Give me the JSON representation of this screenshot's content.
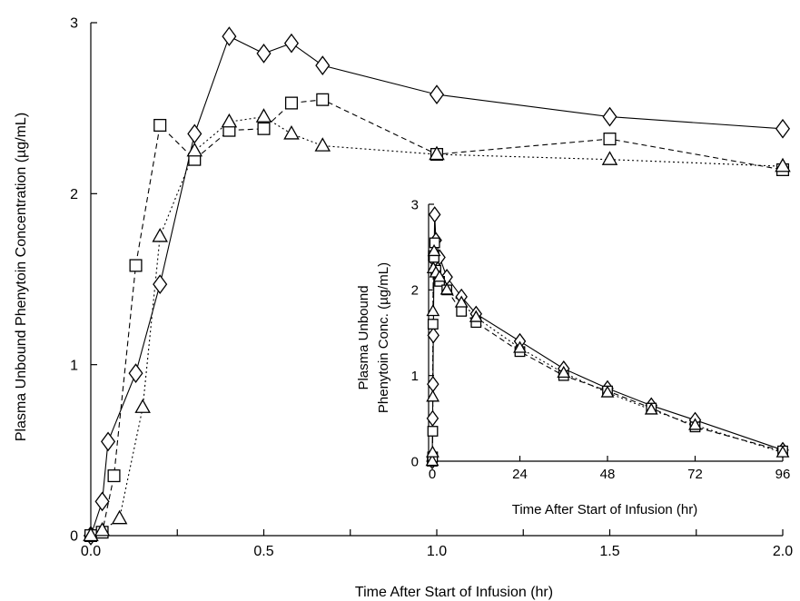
{
  "chart_data": [
    {
      "type": "line",
      "xlabel": "Time After Start of Infusion (hr)",
      "ylabel": "Plasma Unbound Phenytoin Concentration (µg/mL)",
      "xlim": [
        0,
        2.0
      ],
      "ylim": [
        0,
        3
      ],
      "xticks": [
        0.0,
        0.5,
        1.0,
        1.5,
        2.0
      ],
      "xtick_labels": [
        "0.0",
        "0.5",
        "1.0",
        "1.5",
        "2.0"
      ],
      "yticks": [
        0,
        1,
        2,
        3
      ],
      "ytick_labels": [
        "0",
        "1",
        "2",
        "3"
      ],
      "grid": false,
      "series": [
        {
          "marker": "diamond",
          "line": "solid",
          "x": [
            0.0,
            0.033,
            0.05,
            0.13,
            0.2,
            0.3,
            0.4,
            0.5,
            0.58,
            0.67,
            1.0,
            1.5,
            2.0
          ],
          "y": [
            0.0,
            0.2,
            0.55,
            0.95,
            1.47,
            2.35,
            2.92,
            2.82,
            2.88,
            2.75,
            2.58,
            2.45,
            2.38
          ]
        },
        {
          "marker": "square",
          "line": "dashed",
          "x": [
            0.0,
            0.033,
            0.067,
            0.13,
            0.2,
            0.3,
            0.4,
            0.5,
            0.58,
            0.67,
            1.0,
            1.5,
            2.0
          ],
          "y": [
            0.0,
            0.02,
            0.35,
            1.58,
            2.4,
            2.2,
            2.37,
            2.38,
            2.53,
            2.55,
            2.23,
            2.32,
            2.14
          ]
        },
        {
          "marker": "triangle",
          "line": "dotted",
          "x": [
            0.0,
            0.033,
            0.083,
            0.15,
            0.2,
            0.3,
            0.4,
            0.5,
            0.58,
            0.67,
            1.0,
            1.5,
            2.0
          ],
          "y": [
            0.0,
            0.03,
            0.1,
            0.75,
            1.75,
            2.25,
            2.42,
            2.45,
            2.35,
            2.28,
            2.23,
            2.2,
            2.16
          ]
        }
      ]
    },
    {
      "type": "line",
      "xlabel": "Time After Start of Infusion (hr)",
      "ylabel_line1": "Plasma Unbound",
      "ylabel_line2": "Phenytoin Conc. (µg/mL)",
      "xlim": [
        -1,
        96
      ],
      "ylim": [
        0,
        3
      ],
      "xticks": [
        0,
        24,
        48,
        72,
        96
      ],
      "xtick_labels": [
        "0",
        "24",
        "48",
        "72",
        "96"
      ],
      "yticks": [
        0,
        1,
        2,
        3
      ],
      "ytick_labels": [
        "0",
        "1",
        "2",
        "3"
      ],
      "grid": false,
      "series": [
        {
          "marker": "diamond",
          "line": "solid",
          "x": [
            0,
            0.1,
            0.2,
            0.3,
            0.5,
            0.67,
            1,
            2,
            4,
            8,
            12,
            24,
            36,
            48,
            60,
            72,
            96
          ],
          "y": [
            0,
            0.5,
            0.9,
            1.47,
            2.35,
            2.88,
            2.58,
            2.38,
            2.15,
            1.92,
            1.72,
            1.4,
            1.08,
            0.85,
            0.65,
            0.48,
            0.13
          ]
        },
        {
          "marker": "square",
          "line": "dashed",
          "x": [
            0,
            0.1,
            0.13,
            0.2,
            0.3,
            0.5,
            0.67,
            1,
            2,
            4,
            8,
            12,
            24,
            36,
            48,
            60,
            72,
            96
          ],
          "y": [
            0,
            0.05,
            0.35,
            1.6,
            2.4,
            2.38,
            2.55,
            2.23,
            2.1,
            2.0,
            1.75,
            1.62,
            1.28,
            1.0,
            0.82,
            0.62,
            0.4,
            0.12
          ]
        },
        {
          "marker": "triangle",
          "line": "dotted",
          "x": [
            0,
            0.1,
            0.15,
            0.2,
            0.3,
            0.5,
            1,
            2,
            4,
            8,
            12,
            24,
            36,
            48,
            60,
            72,
            96
          ],
          "y": [
            0,
            0.1,
            0.75,
            1.75,
            2.25,
            2.45,
            2.2,
            2.15,
            2.0,
            1.85,
            1.68,
            1.32,
            1.03,
            0.8,
            0.6,
            0.42,
            0.1
          ]
        }
      ]
    }
  ]
}
